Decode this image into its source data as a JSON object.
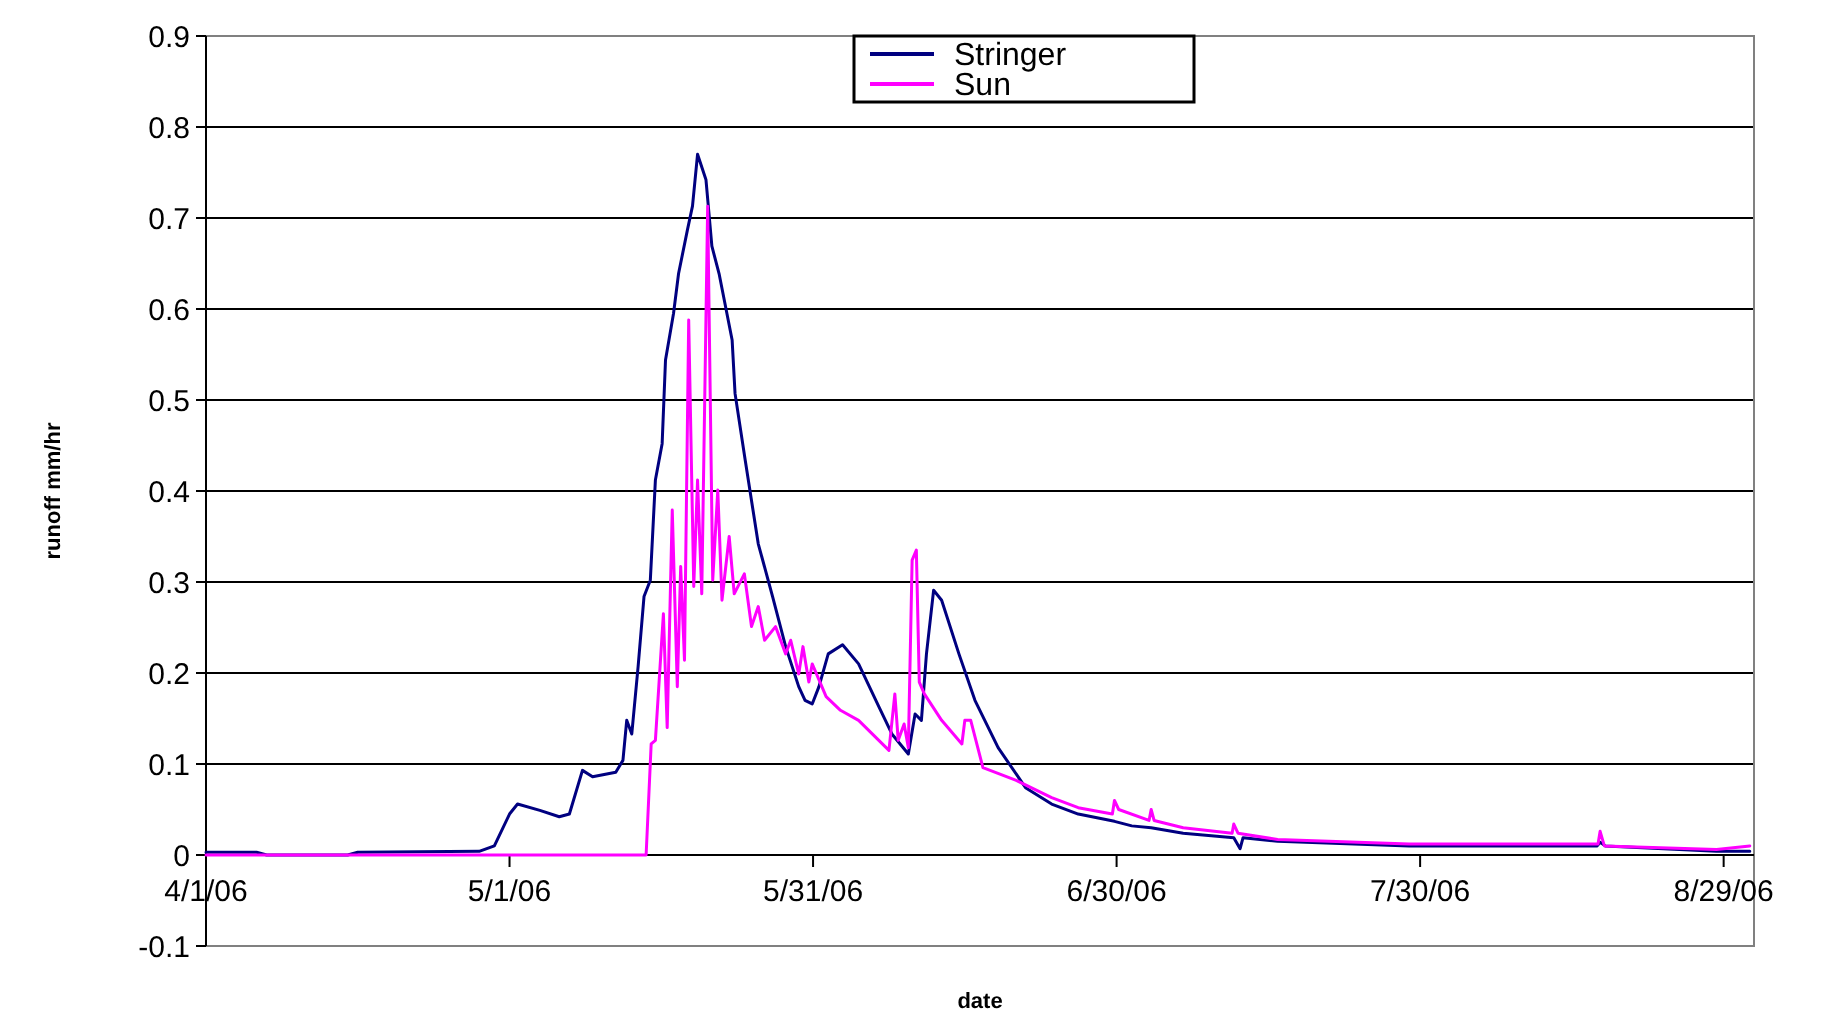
{
  "chart_data": {
    "type": "line",
    "xlabel": "date",
    "ylabel": "runoff mm/hr",
    "xlim": [
      "2006-04-01",
      "2006-09-01"
    ],
    "xticks": [
      {
        "value": "2006-04-01",
        "label": "4/1/06"
      },
      {
        "value": "2006-05-01",
        "label": "5/1/06"
      },
      {
        "value": "2006-05-31",
        "label": "5/31/06"
      },
      {
        "value": "2006-06-30",
        "label": "6/30/06"
      },
      {
        "value": "2006-07-30",
        "label": "7/30/06"
      },
      {
        "value": "2006-08-29",
        "label": "8/29/06"
      }
    ],
    "ylim": [
      -0.1,
      0.9
    ],
    "yticks": [
      -0.1,
      0,
      0.1,
      0.2,
      0.3,
      0.4,
      0.5,
      0.6,
      0.7,
      0.8,
      0.9
    ],
    "grid": "y",
    "legend": "top",
    "marker": "none",
    "line_style": "solid",
    "series": [
      {
        "name": "Stringer",
        "color": "#000080",
        "x": [
          "2006-04-01",
          "2006-04-06",
          "2006-04-07",
          "2006-04-15",
          "2006-04-16",
          "2006-04-28",
          "2006-04-29T12:00",
          "2006-05-01",
          "2006-05-01T19:00",
          "2006-05-04",
          "2006-05-05T22:00",
          "2006-05-06T22:00",
          "2006-05-08T05:00",
          "2006-05-09T05:00",
          "2006-05-11T12:00",
          "2006-05-12T05:00",
          "2006-05-12T14:00",
          "2006-05-13T02:00",
          "2006-05-13T17:00",
          "2006-05-14T07:00",
          "2006-05-14T22:00",
          "2006-05-15T10:00",
          "2006-05-16T02:00",
          "2006-05-16T10:00",
          "2006-05-17T05:00",
          "2006-05-17T17:00",
          "2006-05-18T14:00",
          "2006-05-19T02:00",
          "2006-05-19T14:00",
          "2006-05-20T10:00",
          "2006-05-21",
          "2006-05-21T17:00",
          "2006-05-23",
          "2006-05-23T07:00",
          "2006-05-24T07:00",
          "2006-05-25T14:00",
          "2006-05-27",
          "2006-05-28T07:00",
          "2006-05-29T14:00",
          "2006-05-30T05:00",
          "2006-05-30T22:00",
          "2006-05-31T14:00",
          "2006-06-01T12:00",
          "2006-06-02T22:00",
          "2006-06-04T12:00",
          "2006-06-06T12:00",
          "2006-06-07T19:00",
          "2006-06-09T10:00",
          "2006-06-10T02:00",
          "2006-06-10T17:00",
          "2006-06-11T05:00",
          "2006-06-11T22:00",
          "2006-06-12T17:00",
          "2006-06-14T10:00",
          "2006-06-16",
          "2006-06-18T07:00",
          "2006-06-21",
          "2006-06-23T14:00",
          "2006-06-26T05:00",
          "2006-06-29T19:00",
          "2006-07-01T12:00",
          "2006-07-03T10:00",
          "2006-07-06T14:00",
          "2006-07-11T14:00",
          "2006-07-12T05:00",
          "2006-07-12T12:00",
          "2006-07-15T22:00",
          "2006-07-28T22:00",
          "2006-08-16T12:00",
          "2006-08-16T19:00",
          "2006-08-17T07:00",
          "2006-08-28T07:00",
          "2006-08-31T14:00"
        ],
        "values": [
          0.003,
          0.003,
          0,
          0,
          0.003,
          0.004,
          0.01,
          0.045,
          0.056,
          0.049,
          0.042,
          0.045,
          0.093,
          0.086,
          0.091,
          0.104,
          0.148,
          0.133,
          0.207,
          0.284,
          0.302,
          0.412,
          0.452,
          0.544,
          0.595,
          0.639,
          0.687,
          0.713,
          0.77,
          0.742,
          0.669,
          0.639,
          0.566,
          0.507,
          0.434,
          0.342,
          0.284,
          0.229,
          0.185,
          0.17,
          0.166,
          0.185,
          0.221,
          0.231,
          0.21,
          0.163,
          0.133,
          0.111,
          0.155,
          0.148,
          0.221,
          0.291,
          0.28,
          0.221,
          0.17,
          0.118,
          0.074,
          0.056,
          0.045,
          0.037,
          0.032,
          0.03,
          0.024,
          0.019,
          0.007,
          0.019,
          0.015,
          0.01,
          0.01,
          0.014,
          0.01,
          0.004,
          0.004
        ]
      },
      {
        "name": "Sun",
        "color": "#ff00ff",
        "x": [
          "2006-04-01",
          "2006-05-14T12:00",
          "2006-05-15",
          "2006-05-15T10:00",
          "2006-05-16T05:00",
          "2006-05-16T14:00",
          "2006-05-17T02:00",
          "2006-05-17T14:00",
          "2006-05-17T22:00",
          "2006-05-18T07:00",
          "2006-05-18T17:00",
          "2006-05-19T05:00",
          "2006-05-19T14:00",
          "2006-05-20",
          "2006-05-20T14:00",
          "2006-05-21T02:00",
          "2006-05-21T14:00",
          "2006-05-22",
          "2006-05-22T17:00",
          "2006-05-23T05:00",
          "2006-05-24T05:00",
          "2006-05-24T22:00",
          "2006-05-25T14:00",
          "2006-05-26T05:00",
          "2006-05-27T07:00",
          "2006-05-28T07:00",
          "2006-05-28T19:00",
          "2006-05-29T14:00",
          "2006-05-30",
          "2006-05-30T14:00",
          "2006-05-30T22:00",
          "2006-06-01T07:00",
          "2006-06-02T17:00",
          "2006-06-04T12:00",
          "2006-06-07T12:00",
          "2006-06-08T02:00",
          "2006-06-08T10:00",
          "2006-06-09",
          "2006-06-09T10:00",
          "2006-06-09T19:00",
          "2006-06-10T05:00",
          "2006-06-10T12:00",
          "2006-06-11",
          "2006-06-12T17:00",
          "2006-06-14T17:00",
          "2006-06-15",
          "2006-06-15T14:00",
          "2006-06-16T19:00",
          "2006-06-20T02:00",
          "2006-06-23T14:00",
          "2006-06-26T05:00",
          "2006-06-29T14:00",
          "2006-06-29T19:00",
          "2006-06-30T05:00",
          "2006-07-03T05:00",
          "2006-07-03T10:00",
          "2006-07-03T17:00",
          "2006-07-06T14:00",
          "2006-07-11T10:00",
          "2006-07-11T14:00",
          "2006-07-12",
          "2006-07-15T22:00",
          "2006-07-28T22:00",
          "2006-08-12T12:00",
          "2006-08-16T14:00",
          "2006-08-16T19:00",
          "2006-08-17T05:00",
          "2006-08-28T07:00",
          "2006-08-31T14:00"
        ],
        "values": [
          0,
          0,
          0.122,
          0.126,
          0.265,
          0.14,
          0.379,
          0.185,
          0.317,
          0.214,
          0.588,
          0.295,
          0.412,
          0.287,
          0.713,
          0.302,
          0.401,
          0.28,
          0.35,
          0.287,
          0.309,
          0.251,
          0.273,
          0.236,
          0.251,
          0.221,
          0.236,
          0.199,
          0.229,
          0.19,
          0.21,
          0.174,
          0.159,
          0.148,
          0.115,
          0.177,
          0.126,
          0.144,
          0.118,
          0.324,
          0.335,
          0.19,
          0.177,
          0.148,
          0.122,
          0.148,
          0.148,
          0.096,
          0.082,
          0.063,
          0.052,
          0.045,
          0.06,
          0.05,
          0.038,
          0.05,
          0.038,
          0.03,
          0.024,
          0.034,
          0.024,
          0.017,
          0.012,
          0.012,
          0.012,
          0.026,
          0.01,
          0.006,
          0.01
        ]
      }
    ]
  }
}
